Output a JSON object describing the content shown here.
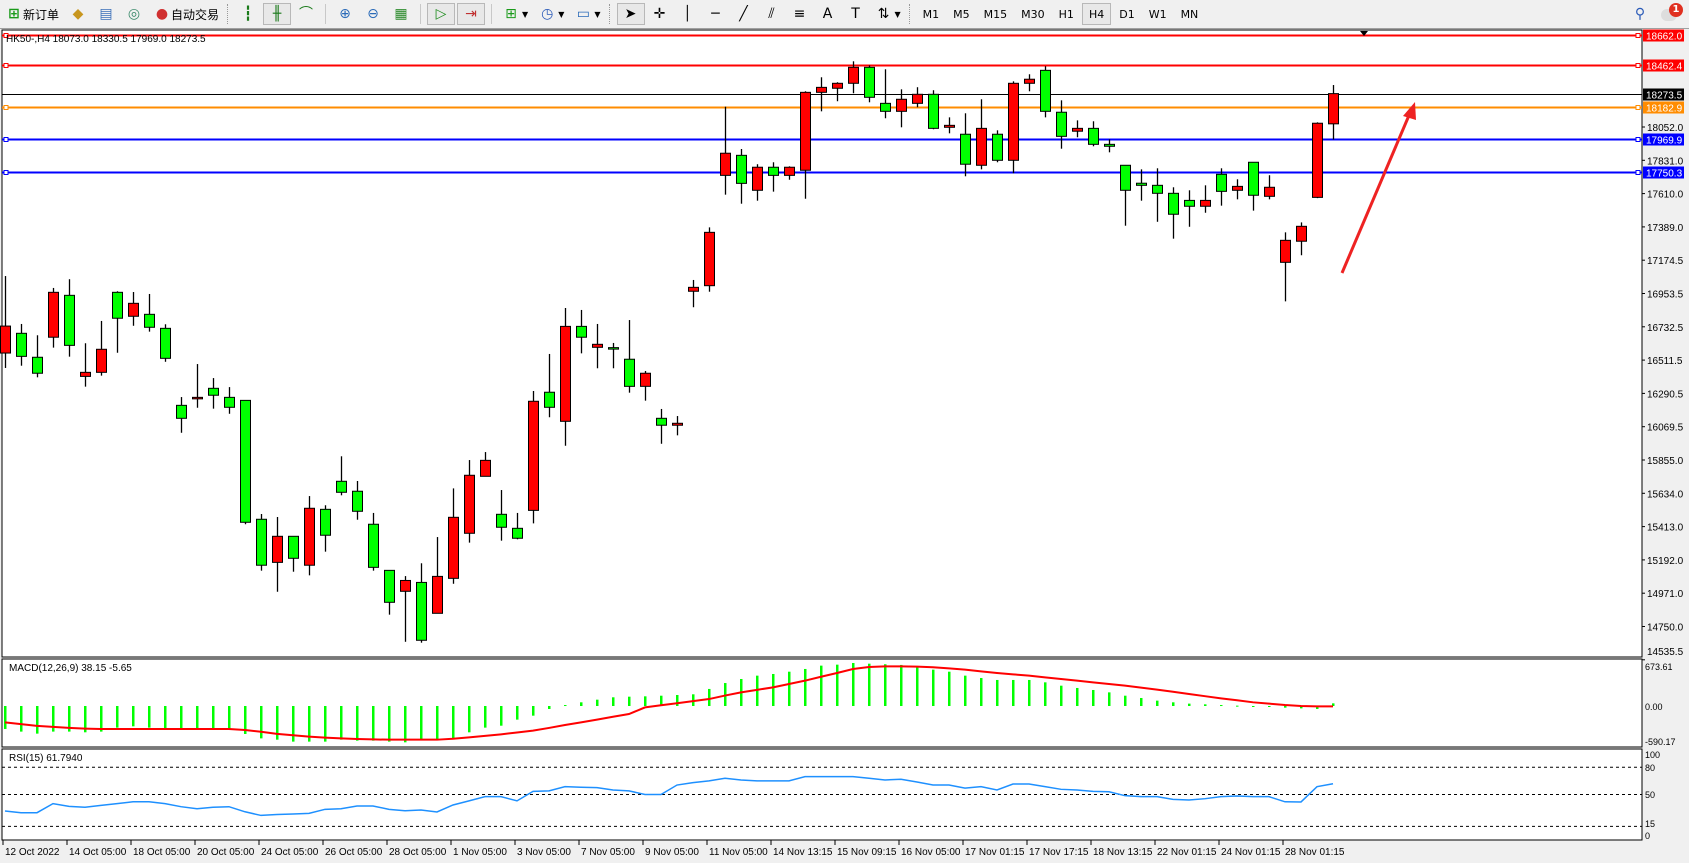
{
  "toolbar": {
    "new_order_label": "新订单",
    "auto_trading_label": "自动交易",
    "timeframes": [
      "M1",
      "M5",
      "M15",
      "M30",
      "H1",
      "H4",
      "D1",
      "W1",
      "MN"
    ],
    "active_timeframe": "H4",
    "notification_count": "1"
  },
  "chart": {
    "header": "HK50-,H4  18073.0 18330.5 17969.0 18273.5",
    "symbol": "HK50-",
    "timeframe": "H4",
    "colors": {
      "bull": "#ff0000",
      "bear": "#00ff00",
      "macd_hist": "#00ff00",
      "macd_signal": "#ff0000",
      "rsi": "#1e90ff",
      "arrow": "#ee2222"
    },
    "price_levels": [
      {
        "label": "18662.0",
        "value": 18662.0,
        "color": "#ff0000"
      },
      {
        "label": "18462.4",
        "value": 18462.4,
        "color": "#ff0000"
      },
      {
        "label": "18273.5",
        "value": 18273.5,
        "color": "#000000"
      },
      {
        "label": "18182.9",
        "value": 18182.9,
        "color": "#ff8c00"
      },
      {
        "label": "17969.9",
        "value": 17969.9,
        "color": "#0000ff"
      },
      {
        "label": "17750.3",
        "value": 17750.3,
        "color": "#0000ff"
      }
    ],
    "price_ticks": [
      "18052.0",
      "17831.0",
      "17610.0",
      "17389.0",
      "17174.5",
      "16953.5",
      "16732.5",
      "16511.5",
      "16290.5",
      "16069.5",
      "15855.0",
      "15634.0",
      "15413.0",
      "15192.0",
      "14971.0",
      "14750.0",
      "14535.5"
    ],
    "time_labels": [
      "12 Oct 2022",
      "14 Oct 05:00",
      "18 Oct 05:00",
      "20 Oct 05:00",
      "24 Oct 05:00",
      "26 Oct 05:00",
      "28 Oct 05:00",
      "1 Nov 05:00",
      "3 Nov 05:00",
      "7 Nov 05:00",
      "9 Nov 05:00",
      "11 Nov 05:00",
      "14 Nov 13:15",
      "15 Nov 09:15",
      "16 Nov 05:00",
      "17 Nov 01:15",
      "17 Nov 17:15",
      "18 Nov 13:15",
      "22 Nov 01:15",
      "24 Nov 01:15",
      "28 Nov 01:15"
    ],
    "candles": [
      [
        16552,
        17063,
        16453,
        16731
      ],
      [
        16683,
        16745,
        16468,
        16530
      ],
      [
        16524,
        16670,
        16391,
        16418
      ],
      [
        16657,
        16984,
        16588,
        16955
      ],
      [
        16935,
        17042,
        16528,
        16603
      ],
      [
        16397,
        16617,
        16329,
        16424
      ],
      [
        16424,
        16765,
        16402,
        16577
      ],
      [
        16955,
        16962,
        16554,
        16783
      ],
      [
        16796,
        16957,
        16733,
        16882
      ],
      [
        16809,
        16944,
        16694,
        16723
      ],
      [
        16716,
        16743,
        16494,
        16517
      ],
      [
        16205,
        16260,
        16023,
        16119
      ],
      [
        16255,
        16479,
        16189,
        16258
      ],
      [
        16318,
        16386,
        16183,
        16272
      ],
      [
        16258,
        16326,
        16149,
        16192
      ],
      [
        16238,
        16238,
        15416,
        15429
      ],
      [
        15449,
        15484,
        15108,
        15144
      ],
      [
        15163,
        15464,
        14968,
        15336
      ],
      [
        15336,
        15336,
        15101,
        15190
      ],
      [
        15144,
        15603,
        15077,
        15522
      ],
      [
        15515,
        15542,
        15234,
        15343
      ],
      [
        15701,
        15867,
        15608,
        15628
      ],
      [
        15635,
        15703,
        15446,
        15502
      ],
      [
        15416,
        15491,
        15108,
        15130
      ],
      [
        15110,
        15110,
        14816,
        14898
      ],
      [
        14971,
        15072,
        14636,
        15043
      ],
      [
        15030,
        15157,
        14630,
        14646
      ],
      [
        14825,
        15331,
        14825,
        15070
      ],
      [
        15057,
        15654,
        15021,
        15462
      ],
      [
        15356,
        15842,
        15294,
        15741
      ],
      [
        15734,
        15895,
        15734,
        15840
      ],
      [
        15482,
        15643,
        15307,
        15396
      ],
      [
        15389,
        15491,
        15316,
        15323
      ],
      [
        15508,
        16300,
        15422,
        16232
      ],
      [
        16292,
        16546,
        16126,
        16192
      ],
      [
        16099,
        16851,
        15937,
        16729
      ],
      [
        16729,
        16838,
        16550,
        16657
      ],
      [
        16590,
        16745,
        16451,
        16610
      ],
      [
        16588,
        16619,
        16451,
        16585
      ],
      [
        16511,
        16771,
        16289,
        16331
      ],
      [
        16331,
        16433,
        16236,
        16418
      ],
      [
        16119,
        16181,
        15950,
        16073
      ],
      [
        16073,
        16134,
        16006,
        16086
      ],
      [
        16962,
        17037,
        16856,
        16988
      ],
      [
        16999,
        17386,
        16959,
        17353
      ],
      [
        17731,
        18187,
        17603,
        17878
      ],
      [
        17864,
        17906,
        17543,
        17678
      ],
      [
        17632,
        17805,
        17563,
        17785
      ],
      [
        17785,
        17818,
        17623,
        17731
      ],
      [
        17731,
        17791,
        17702,
        17785
      ],
      [
        17765,
        18289,
        17576,
        18282
      ],
      [
        18282,
        18382,
        18156,
        18315
      ],
      [
        18309,
        18349,
        18223,
        18342
      ],
      [
        18342,
        18488,
        18276,
        18448
      ],
      [
        18448,
        18461,
        18216,
        18249
      ],
      [
        18209,
        18435,
        18110,
        18156
      ],
      [
        18156,
        18302,
        18050,
        18236
      ],
      [
        18209,
        18316,
        18183,
        18269
      ],
      [
        18269,
        18296,
        18037,
        18043
      ],
      [
        18050,
        18116,
        18010,
        18063
      ],
      [
        18004,
        18143,
        17725,
        17805
      ],
      [
        17798,
        18236,
        17771,
        18043
      ],
      [
        18004,
        18030,
        17818,
        17831
      ],
      [
        17831,
        18355,
        17745,
        18342
      ],
      [
        18342,
        18402,
        18289,
        18369
      ],
      [
        18428,
        18455,
        18116,
        18156
      ],
      [
        18150,
        18229,
        17908,
        17990
      ],
      [
        18024,
        18096,
        17984,
        18043
      ],
      [
        18043,
        18090,
        17924,
        17937
      ],
      [
        17937,
        17970,
        17884,
        17924
      ],
      [
        17798,
        17798,
        17397,
        17632
      ],
      [
        17679,
        17771,
        17563,
        17665
      ],
      [
        17665,
        17778,
        17423,
        17612
      ],
      [
        17612,
        17652,
        17311,
        17473
      ],
      [
        17565,
        17632,
        17390,
        17526
      ],
      [
        17526,
        17665,
        17483,
        17565
      ],
      [
        17738,
        17778,
        17530,
        17625
      ],
      [
        17632,
        17705,
        17572,
        17658
      ],
      [
        17818,
        17818,
        17497,
        17599
      ],
      [
        17592,
        17732,
        17572,
        17652
      ],
      [
        17154,
        17353,
        16895,
        17300
      ],
      [
        17294,
        17419,
        17201,
        17393
      ],
      [
        17585,
        18083,
        17580,
        18077
      ],
      [
        18073.0,
        18330.5,
        17969.0,
        18273.5
      ]
    ],
    "macd": {
      "label": "MACD(12,26,9) 38.15 -5.65",
      "scale_labels": [
        "673.61",
        "0.00",
        "-590.17"
      ],
      "max": 673.61,
      "min": -590.17,
      "histogram": [
        -330,
        -368,
        -397,
        -368,
        -368,
        -378,
        -368,
        -311,
        -292,
        -311,
        -330,
        -330,
        -330,
        -330,
        -330,
        -402,
        -465,
        -484,
        -512,
        -512,
        -512,
        -484,
        -498,
        -498,
        -512,
        -522,
        -484,
        -484,
        -465,
        -378,
        -311,
        -283,
        -196,
        -139,
        -43,
        14,
        53,
        91,
        125,
        134,
        139,
        148,
        158,
        168,
        245,
        330,
        388,
        436,
        460,
        493,
        532,
        580,
        594,
        618,
        608,
        600,
        590,
        556,
        522,
        493,
        436,
        402,
        374,
        374,
        374,
        340,
        292,
        259,
        230,
        196,
        148,
        115,
        77,
        53,
        34,
        24,
        14,
        5,
        -5,
        -10,
        -24,
        -34,
        -43,
        38.15
      ],
      "signal": [
        -235,
        -260,
        -285,
        -300,
        -315,
        -325,
        -330,
        -330,
        -330,
        -330,
        -330,
        -330,
        -330,
        -330,
        -330,
        -345,
        -370,
        -400,
        -420,
        -440,
        -455,
        -465,
        -475,
        -480,
        -484,
        -484,
        -484,
        -484,
        -470,
        -450,
        -430,
        -407,
        -380,
        -354,
        -315,
        -273,
        -235,
        -196,
        -155,
        -115,
        -20,
        10,
        40,
        70,
        100,
        150,
        196,
        232,
        268,
        316,
        364,
        420,
        474,
        532,
        560,
        570,
        570,
        565,
        556,
        540,
        522,
        498,
        474,
        455,
        436,
        412,
        388,
        364,
        340,
        316,
        292,
        264,
        235,
        204,
        172,
        141,
        110,
        82,
        53,
        34,
        14,
        0,
        -5,
        -5.65
      ]
    },
    "rsi": {
      "label": "RSI(15) 61.7940",
      "levels": [
        80,
        50,
        15
      ],
      "scale_labels": [
        "100",
        "80",
        "50",
        "15",
        "0"
      ],
      "values": [
        31.9,
        30,
        30,
        40,
        37,
        36,
        38,
        40,
        42,
        42,
        40,
        36.6,
        34.4,
        36,
        36.6,
        31,
        27,
        28,
        28.6,
        29.3,
        33.7,
        34.4,
        37.4,
        37.4,
        33.7,
        32.2,
        33,
        30.8,
        38.5,
        43,
        47.6,
        47.6,
        43,
        53.5,
        54,
        58.6,
        58,
        57.5,
        55,
        54,
        50,
        50,
        60.4,
        63,
        65,
        67.8,
        66,
        65,
        65,
        65,
        69.6,
        69.6,
        69.6,
        69.6,
        67.8,
        66,
        66.7,
        63.7,
        60.4,
        60.4,
        57,
        58.6,
        55,
        61.5,
        61.5,
        58.6,
        55.7,
        55,
        53.5,
        53,
        48.7,
        47.6,
        47.6,
        44.7,
        44,
        45.4,
        47.6,
        48.4,
        47.6,
        47.6,
        42,
        41.8,
        58.6,
        61.794
      ]
    }
  }
}
